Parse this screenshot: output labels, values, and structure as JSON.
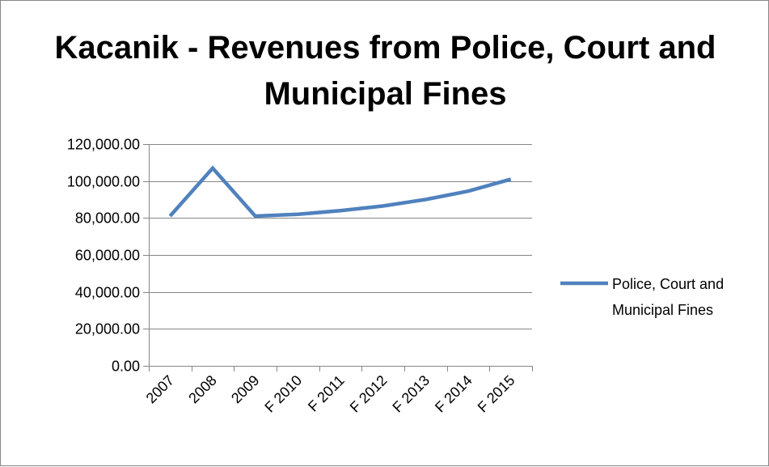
{
  "chart_data": {
    "type": "line",
    "title": "Kacanik - Revenues from Police, Court and Municipal Fines",
    "categories": [
      "2007",
      "2008",
      "2009",
      "F 2010",
      "F 2011",
      "F 2012",
      "F 2013",
      "F 2014",
      "F 2015"
    ],
    "series": [
      {
        "name": "Police, Court and Municipal Fines",
        "values": [
          81000,
          107000,
          81000,
          82000,
          84000,
          86500,
          90000,
          94500,
          101000
        ]
      }
    ],
    "ylim": [
      0,
      120000
    ],
    "yticks": [
      "0.00",
      "20,000.00",
      "40,000.00",
      "60,000.00",
      "80,000.00",
      "100,000.00",
      "120,000.00"
    ],
    "grid": true,
    "legend_position": "right",
    "colors": {
      "series": "#4f81bd",
      "grid": "#868686",
      "axis": "#868686"
    }
  }
}
